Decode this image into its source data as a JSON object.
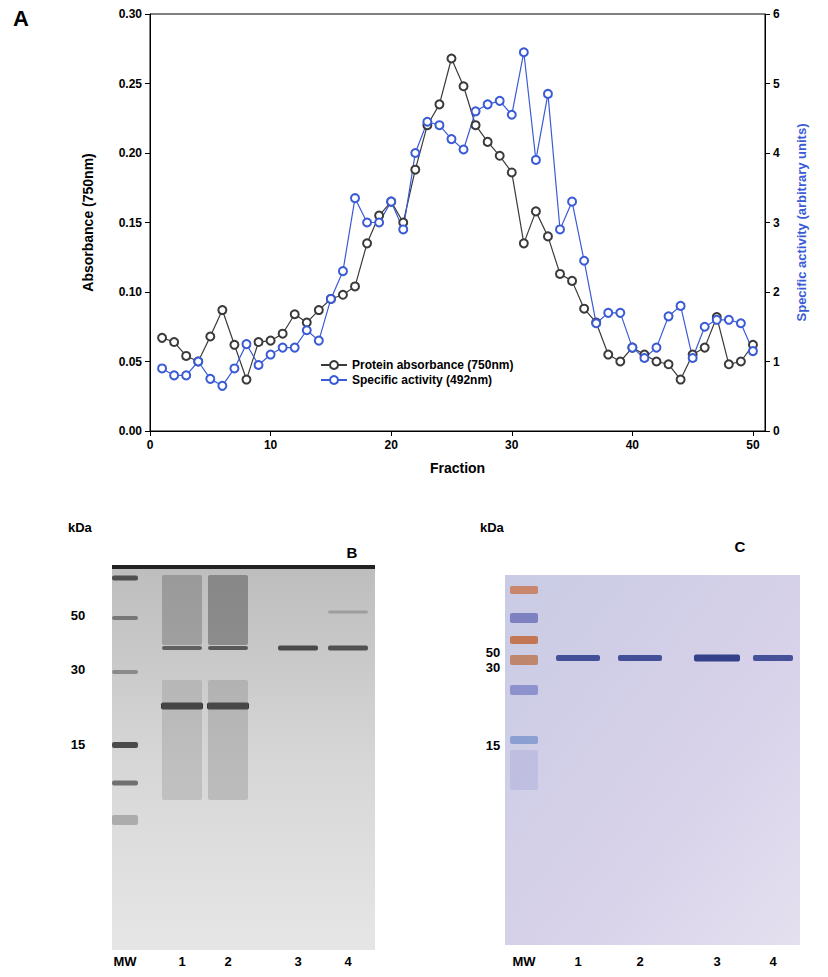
{
  "chart_data": {
    "type": "line",
    "title": "A",
    "x_label": "Fraction",
    "y_label": "Absorbance (750nm)",
    "y2_label": "Specific activity (arbitrary units)",
    "x": [
      1,
      2,
      3,
      4,
      5,
      6,
      7,
      8,
      9,
      10,
      11,
      12,
      13,
      14,
      15,
      16,
      17,
      18,
      19,
      20,
      21,
      22,
      23,
      24,
      25,
      26,
      27,
      28,
      29,
      30,
      31,
      32,
      33,
      34,
      35,
      36,
      37,
      38,
      39,
      40,
      41,
      42,
      43,
      44,
      45,
      46,
      47,
      48,
      49,
      50
    ],
    "xlim": [
      0,
      51
    ],
    "xticks": [
      0,
      10,
      20,
      30,
      40,
      50
    ],
    "ylim": [
      0,
      0.3
    ],
    "yticks": [
      {
        "value": 0,
        "label": "0.00"
      },
      {
        "value": 0.05,
        "label": "0.05"
      },
      {
        "value": 0.1,
        "label": "0.10"
      },
      {
        "value": 0.15,
        "label": "0.15"
      },
      {
        "value": 0.2,
        "label": "0.20"
      },
      {
        "value": 0.25,
        "label": "0.25"
      },
      {
        "value": 0.3,
        "label": "0.30"
      }
    ],
    "y2lim": [
      0,
      6
    ],
    "y2ticks": [
      0,
      1,
      2,
      3,
      4,
      5,
      6
    ],
    "grid": false,
    "legend": "lower center",
    "marker": "circle",
    "series": [
      {
        "name": "Protein absorbance (750nm)",
        "color": "#3a3a3a",
        "values": [
          0.067,
          0.064,
          0.054,
          0.05,
          0.068,
          0.087,
          0.062,
          0.037,
          0.064,
          0.065,
          0.07,
          0.084,
          0.078,
          0.087,
          0.095,
          0.098,
          0.104,
          0.135,
          0.155,
          0.165,
          0.15,
          0.188,
          0.22,
          0.235,
          0.268,
          0.248,
          0.22,
          0.208,
          0.198,
          0.186,
          0.135,
          0.158,
          0.14,
          0.113,
          0.108,
          0.088,
          0.078,
          0.055,
          0.05,
          0.06,
          0.055,
          0.05,
          0.048,
          0.037,
          0.055,
          0.06,
          0.082,
          0.048,
          0.05,
          0.062
        ]
      },
      {
        "name": "Specific activity (492nm)",
        "color": "#3b5bd6",
        "axis": "y2",
        "values": [
          0.9,
          0.8,
          0.8,
          1.0,
          0.75,
          0.65,
          0.9,
          1.25,
          0.95,
          1.1,
          1.2,
          1.2,
          1.45,
          1.3,
          1.9,
          2.3,
          3.35,
          3.0,
          3.0,
          3.3,
          2.9,
          4.0,
          4.45,
          4.4,
          4.2,
          4.05,
          4.6,
          4.7,
          4.75,
          4.55,
          5.45,
          3.9,
          4.85,
          2.9,
          3.3,
          2.45,
          1.55,
          1.7,
          1.7,
          1.2,
          1.05,
          1.2,
          1.65,
          1.8,
          1.05,
          1.5,
          1.6,
          1.6,
          1.55,
          1.15
        ]
      }
    ]
  },
  "gels": [
    {
      "title": "B",
      "unit": "kDa",
      "markers": [
        50,
        30,
        15
      ],
      "lanes": [
        "MW",
        "1",
        "2",
        "3",
        "4"
      ]
    },
    {
      "title": "C",
      "unit": "kDa",
      "markers": [
        50,
        30,
        15
      ],
      "lanes": [
        "MW",
        "1",
        "2",
        "3",
        "4"
      ]
    }
  ]
}
